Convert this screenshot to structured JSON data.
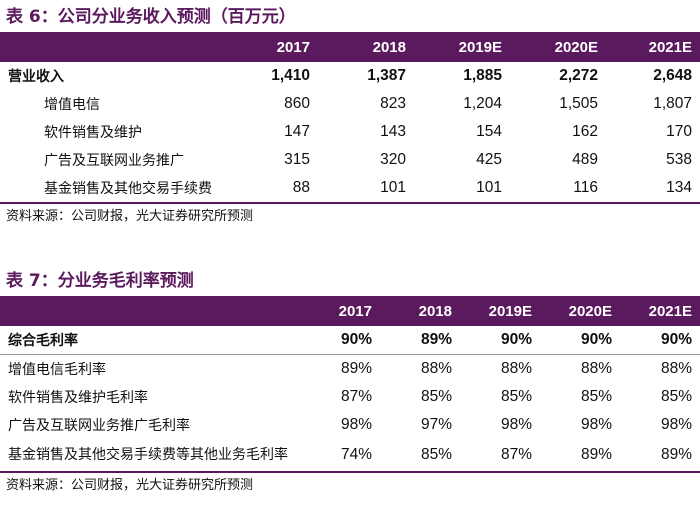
{
  "table6": {
    "title": "表 6：公司分业务收入预测（百万元）",
    "columns": [
      "",
      "2017",
      "2018",
      "2019E",
      "2020E",
      "2021E"
    ],
    "rows": [
      {
        "label": "营业收入",
        "values": [
          "1,410",
          "1,387",
          "1,885",
          "2,272",
          "2,648"
        ]
      },
      {
        "label": "增值电信",
        "values": [
          "860",
          "823",
          "1,204",
          "1,505",
          "1,807"
        ]
      },
      {
        "label": "软件销售及维护",
        "values": [
          "147",
          "143",
          "154",
          "162",
          "170"
        ]
      },
      {
        "label": "广告及互联网业务推广",
        "values": [
          "315",
          "320",
          "425",
          "489",
          "538"
        ]
      },
      {
        "label": "基金销售及其他交易手续费",
        "values": [
          "88",
          "101",
          "101",
          "116",
          "134"
        ]
      }
    ],
    "source": "资料来源：公司财报，光大证券研究所预测"
  },
  "table7": {
    "title": "表 7：分业务毛利率预测",
    "columns": [
      "",
      "2017",
      "2018",
      "2019E",
      "2020E",
      "2021E"
    ],
    "rows": [
      {
        "label": "综合毛利率",
        "values": [
          "90%",
          "89%",
          "90%",
          "90%",
          "90%"
        ]
      },
      {
        "label": "增值电信毛利率",
        "values": [
          "89%",
          "88%",
          "88%",
          "88%",
          "88%"
        ]
      },
      {
        "label": "软件销售及维护毛利率",
        "values": [
          "87%",
          "85%",
          "85%",
          "85%",
          "85%"
        ]
      },
      {
        "label": "广告及互联网业务推广毛利率",
        "values": [
          "98%",
          "97%",
          "98%",
          "98%",
          "98%"
        ]
      },
      {
        "label": "基金销售及其他交易手续费等其他业务毛利率",
        "values": [
          "74%",
          "85%",
          "87%",
          "89%",
          "89%"
        ]
      }
    ],
    "source": "资料来源：公司财报，光大证券研究所预测"
  }
}
